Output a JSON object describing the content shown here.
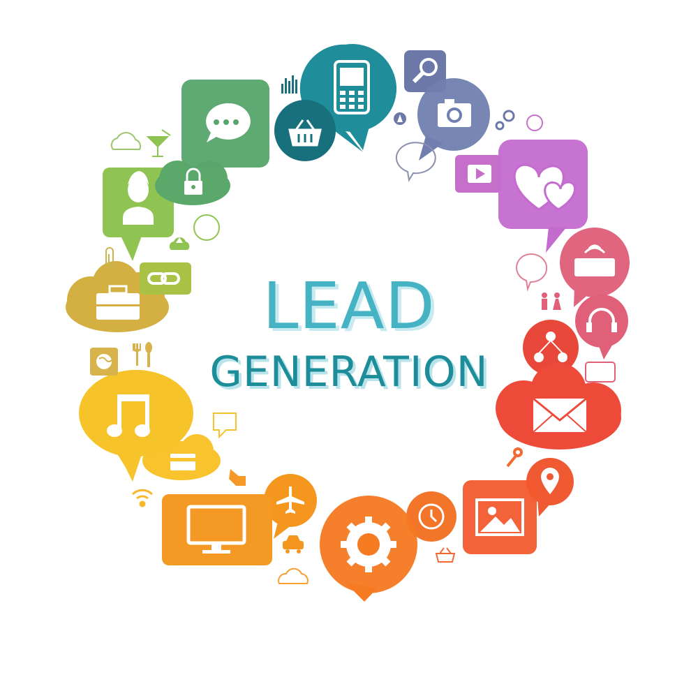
{
  "headline": {
    "line1": "LEAD",
    "line2": "GENERATION"
  },
  "colors": {
    "teal": "#1f8e9a",
    "teal_light": "#45b3c4",
    "slate": "#6f7fab",
    "violet": "#c56fca",
    "pink": "#e0607a",
    "red": "#ef4a3c",
    "orange_red": "#f26a32",
    "orange": "#f59a2a",
    "yellow": "#f7c52b",
    "olive": "#d3b245",
    "lime": "#8fc453",
    "green": "#5aa86a"
  },
  "icons": [
    "mobile-phone-icon",
    "shopping-basket-icon",
    "bar-chart-icon",
    "magnifier-icon",
    "camera-icon",
    "gears-icon",
    "compass-icon",
    "speech-bubble-icon",
    "video-play-icon",
    "hearts-icon",
    "keyboard-icon",
    "couple-icon",
    "headphones-icon",
    "network-icon",
    "envelope-icon",
    "wrench-icon",
    "location-pin-icon",
    "image-icon",
    "clock-icon",
    "settings-gear-icon",
    "car-icon",
    "airplane-icon",
    "monitor-icon",
    "pointing-hand-icon",
    "credit-card-icon",
    "wifi-icon",
    "music-note-icon",
    "globe-icon",
    "cutlery-icon",
    "briefcase-icon",
    "chain-link-icon",
    "paperclip-icon",
    "cloud-upload-icon",
    "user-icon",
    "padlock-icon",
    "chat-dots-icon",
    "cocktail-icon",
    "cloud-icon"
  ]
}
